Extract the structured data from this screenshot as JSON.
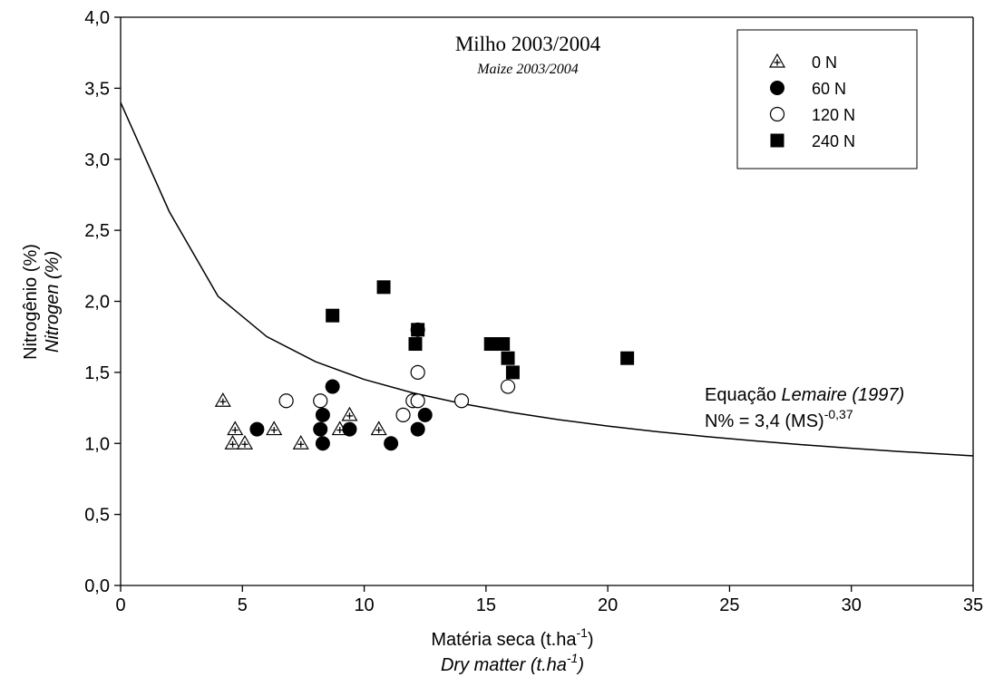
{
  "chart_data": {
    "type": "scatter",
    "title": "Milho 2003/2004",
    "subtitle": "Maize 2003/2004",
    "xlabel": {
      "main_text": "Matéria seca (t.ha",
      "main_sup": "-1",
      "main_close": ")",
      "sub_text": "Dry matter (t.ha",
      "sub_sup": "-1",
      "sub_close": ")"
    },
    "ylabel": {
      "main": "Nitrogênio (%)",
      "sub": "Nitrogen (%)"
    },
    "xlim": [
      0,
      35
    ],
    "ylim": [
      0,
      4
    ],
    "xticks": [
      0,
      5,
      10,
      15,
      20,
      25,
      30,
      35
    ],
    "yticks": [
      0,
      0.5,
      1,
      1.5,
      2,
      2.5,
      3,
      3.5,
      4
    ],
    "ytick_labels": [
      "0,0",
      "0,5",
      "1,0",
      "1,5",
      "2,0",
      "2,5",
      "3,0",
      "3,5",
      "4,0"
    ],
    "grid": false,
    "legend_placement": "top-right",
    "series": [
      {
        "name": "0 N",
        "marker": "triangle-plus",
        "points": [
          [
            4.2,
            1.3
          ],
          [
            4.7,
            1.1
          ],
          [
            4.6,
            1.0
          ],
          [
            5.1,
            1.0
          ],
          [
            6.3,
            1.1
          ],
          [
            7.4,
            1.0
          ],
          [
            9.0,
            1.1
          ],
          [
            9.4,
            1.2
          ],
          [
            10.6,
            1.1
          ]
        ]
      },
      {
        "name": "60 N",
        "marker": "filled-circle",
        "points": [
          [
            5.6,
            1.1
          ],
          [
            8.2,
            1.1
          ],
          [
            8.3,
            1.2
          ],
          [
            8.3,
            1.0
          ],
          [
            8.7,
            1.4
          ],
          [
            9.4,
            1.1
          ],
          [
            11.1,
            1.0
          ],
          [
            12.2,
            1.1
          ],
          [
            12.2,
            1.8
          ],
          [
            12.5,
            1.2
          ]
        ]
      },
      {
        "name": "120 N",
        "marker": "open-circle",
        "points": [
          [
            6.8,
            1.3
          ],
          [
            8.2,
            1.3
          ],
          [
            11.6,
            1.2
          ],
          [
            12.0,
            1.3
          ],
          [
            12.2,
            1.3
          ],
          [
            12.2,
            1.5
          ],
          [
            14.0,
            1.3
          ],
          [
            15.9,
            1.4
          ]
        ]
      },
      {
        "name": "240 N",
        "marker": "filled-square",
        "points": [
          [
            8.7,
            1.9
          ],
          [
            10.8,
            2.1
          ],
          [
            12.1,
            1.7
          ],
          [
            12.2,
            1.8
          ],
          [
            15.2,
            1.7
          ],
          [
            15.7,
            1.7
          ],
          [
            15.9,
            1.6
          ],
          [
            16.1,
            1.5
          ],
          [
            20.8,
            1.6
          ]
        ]
      }
    ],
    "curve": {
      "label": "Equação Lemaire (1997)",
      "equation": "N% = 3,4 (MS)^-0,37",
      "a": 3.4,
      "b": -0.37,
      "x_start": 0,
      "x_end": 35,
      "y_at_0": 3.4,
      "x_from_formula": 1
    },
    "annotation": {
      "line1_prefix": "Equação ",
      "line1_italic": "Lemaire (1997)",
      "line2_text": "N% = 3,4 (MS)",
      "line2_sup": "-0,37"
    }
  }
}
